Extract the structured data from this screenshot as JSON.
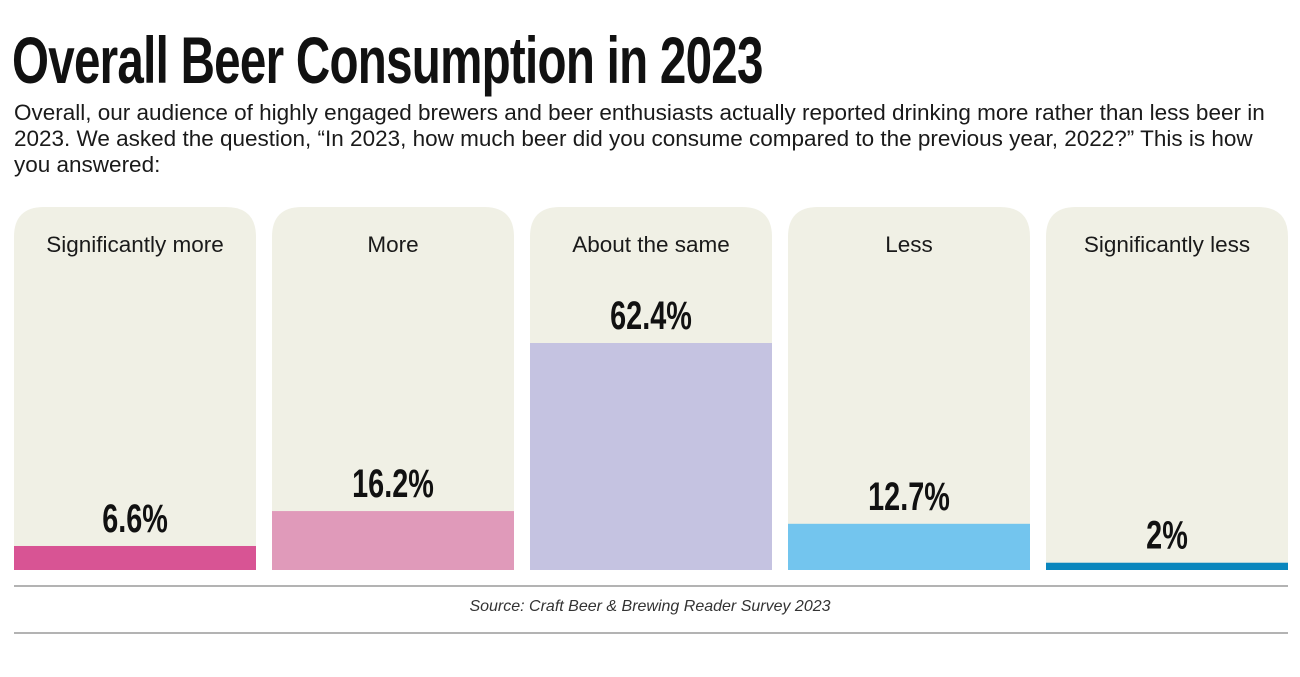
{
  "title": "Overall Beer Consumption in 2023",
  "subtitle": "Overall, our audience of highly engaged brewers and beer enthusiasts actually reported drinking more rather than less beer in 2023. We asked the question, “In 2023, how much beer did you consume compared to the previous year, 2022?” This is how you answered:",
  "source": "Source: Craft Beer & Brewing Reader Survey 2023",
  "chart_data": {
    "type": "bar",
    "title": "Overall Beer Consumption in 2023",
    "categories": [
      "Significantly more",
      "More",
      "About the same",
      "Less",
      "Significantly less"
    ],
    "values": [
      6.6,
      16.2,
      62.4,
      12.7,
      2
    ],
    "data_labels": [
      "6.6%",
      "16.2%",
      "62.4%",
      "12.7%",
      "2%"
    ],
    "unit": "%",
    "ylim": [
      0,
      100
    ],
    "grid": false,
    "colors": [
      "#d85494",
      "#e09aba",
      "#c5c3e1",
      "#73c5ee",
      "#0a86bd"
    ],
    "panel_background": "#f0f0e5"
  }
}
